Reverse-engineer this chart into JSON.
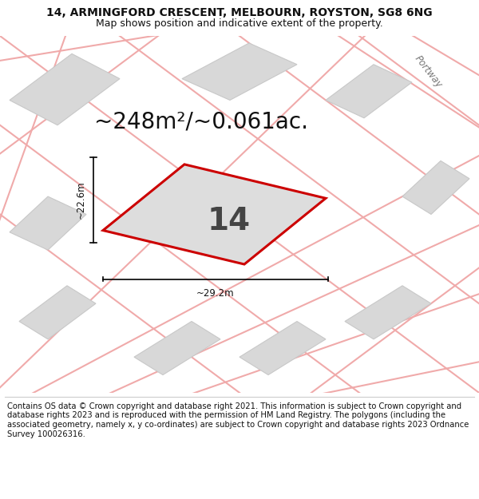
{
  "title_line1": "14, ARMINGFORD CRESCENT, MELBOURN, ROYSTON, SG8 6NG",
  "title_line2": "Map shows position and indicative extent of the property.",
  "area_text": "~248m²/~0.061ac.",
  "plot_number": "14",
  "width_label": "~29.2m",
  "height_label": "~22.6m",
  "footer_text": "Contains OS data © Crown copyright and database right 2021. This information is subject to Crown copyright and database rights 2023 and is reproduced with the permission of HM Land Registry. The polygons (including the associated geometry, namely x, y co-ordinates) are subject to Crown copyright and database rights 2023 Ordnance Survey 100026316.",
  "map_bg": "#eeeeee",
  "plot_fill": "#dddddd",
  "plot_edge": "#cc0000",
  "road_color": "#f0aaaa",
  "building_fill": "#d8d8d8",
  "building_edge": "#c8c8c8",
  "title_fontsize": 10.0,
  "subtitle_fontsize": 9.0,
  "area_fontsize": 20,
  "number_fontsize": 28,
  "label_fontsize": 8.5,
  "footer_fontsize": 7.2,
  "portway_fontsize": 8.5,
  "road_lw": 1.5,
  "plot_lw": 2.2
}
